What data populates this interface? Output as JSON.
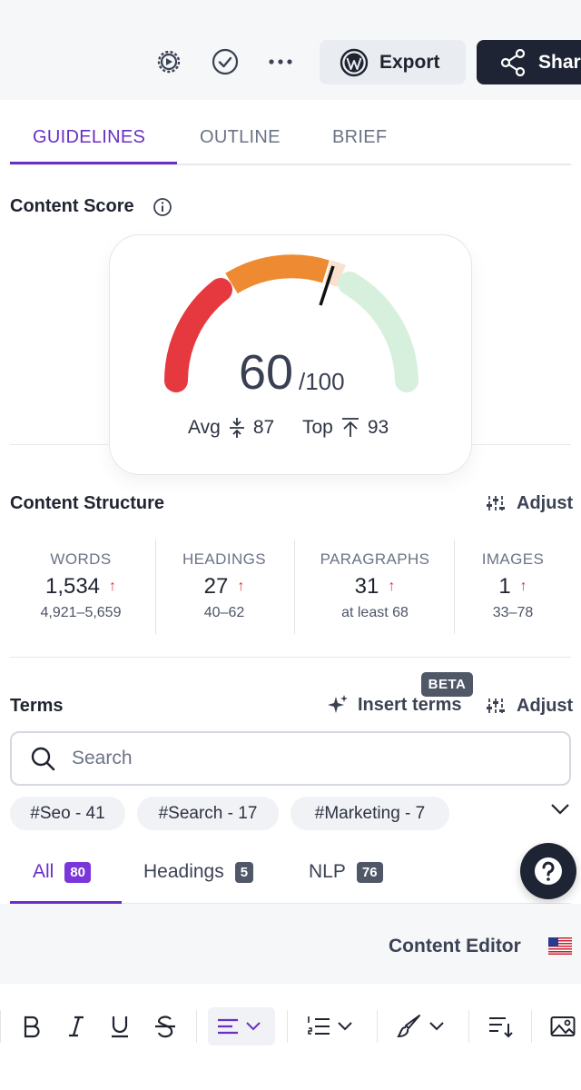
{
  "topbar": {
    "export_label": "Export",
    "share_label": "Shar",
    "icons": [
      "settings-icon",
      "check-circle-icon",
      "more-icon",
      "wordpress-icon",
      "share-icon"
    ]
  },
  "tabs": [
    {
      "label": "GUIDELINES",
      "active": true
    },
    {
      "label": "OUTLINE",
      "active": false
    },
    {
      "label": "BRIEF",
      "active": false
    }
  ],
  "content_score": {
    "title": "Content Score",
    "score": "60",
    "max": "/100",
    "score_value": 60,
    "avg_label": "Avg",
    "avg_value": "87",
    "top_label": "Top",
    "top_value": "93"
  },
  "structure": {
    "title": "Content Structure",
    "adjust_label": "Adjust",
    "stats": [
      {
        "label": "WORDS",
        "value": "1,534",
        "range": "4,921–5,659"
      },
      {
        "label": "HEADINGS",
        "value": "27",
        "range": "40–62"
      },
      {
        "label": "PARAGRAPHS",
        "value": "31",
        "range": "at least 68"
      },
      {
        "label": "IMAGES",
        "value": "1",
        "range": "33–78"
      }
    ]
  },
  "terms": {
    "title": "Terms",
    "beta": "BETA",
    "insert_label": "Insert terms",
    "adjust_label": "Adjust",
    "search_placeholder": "Search",
    "chips": [
      "#Seo - 41",
      "#Search - 17",
      "#Marketing - 7"
    ],
    "filters": [
      {
        "label": "All",
        "count": "80",
        "active": true
      },
      {
        "label": "Headings",
        "count": "5",
        "active": false
      },
      {
        "label": "NLP",
        "count": "76",
        "active": false
      }
    ]
  },
  "editor": {
    "label": "Content Editor"
  },
  "colors": {
    "accent": "#6a2fc4",
    "gauge_red": "#e5393f",
    "gauge_orange": "#ee8a32",
    "gauge_peach": "#fbe0cf",
    "gauge_green": "#d6f0dd"
  }
}
